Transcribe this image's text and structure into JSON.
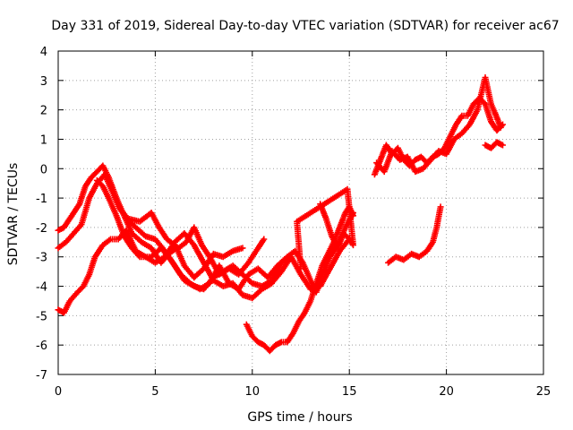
{
  "chart_data": {
    "type": "scatter",
    "title": "Day 331 of 2019, Sidereal Day-to-day VTEC variation (SDTVAR) for receiver ac67",
    "xlabel": "GPS time / hours",
    "ylabel": "SDTVAR / TECUs",
    "xlim": [
      0,
      25
    ],
    "ylim": [
      -7,
      4
    ],
    "xticks": [
      0,
      5,
      10,
      15,
      20,
      25
    ],
    "yticks": [
      -7,
      -6,
      -5,
      -4,
      -3,
      -2,
      -1,
      0,
      1,
      2,
      3,
      4
    ],
    "grid": true,
    "marker": "+",
    "color": "#ff0000",
    "series": [
      {
        "points": [
          [
            0.0,
            -2.1
          ],
          [
            0.3,
            -2.0
          ],
          [
            0.6,
            -1.7
          ],
          [
            0.8,
            -1.5
          ],
          [
            1.1,
            -1.2
          ],
          [
            1.4,
            -0.6
          ],
          [
            1.7,
            -0.3
          ],
          [
            2.0,
            -0.1
          ],
          [
            2.3,
            0.1
          ],
          [
            2.6,
            -0.3
          ],
          [
            3.0,
            -1.0
          ],
          [
            3.4,
            -1.6
          ],
          [
            3.8,
            -2.2
          ],
          [
            4.3,
            -2.5
          ],
          [
            4.8,
            -2.7
          ],
          [
            5.3,
            -3.2
          ],
          [
            5.7,
            -2.9
          ],
          [
            6.1,
            -2.7
          ],
          [
            6.5,
            -3.3
          ],
          [
            7.0,
            -3.7
          ],
          [
            7.5,
            -3.4
          ],
          [
            8.0,
            -2.9
          ],
          [
            8.5,
            -3.0
          ],
          [
            9.0,
            -2.8
          ],
          [
            9.5,
            -2.7
          ]
        ]
      },
      {
        "points": [
          [
            0.0,
            -2.7
          ],
          [
            0.4,
            -2.5
          ],
          [
            0.8,
            -2.2
          ],
          [
            1.2,
            -1.9
          ],
          [
            1.6,
            -1.0
          ],
          [
            2.0,
            -0.5
          ],
          [
            2.4,
            -0.2
          ],
          [
            2.8,
            -0.8
          ],
          [
            3.2,
            -1.4
          ],
          [
            3.6,
            -1.7
          ],
          [
            4.2,
            -1.8
          ],
          [
            4.8,
            -1.5
          ],
          [
            5.2,
            -2.0
          ],
          [
            5.6,
            -2.4
          ],
          [
            6.2,
            -2.7
          ],
          [
            6.6,
            -2.5
          ],
          [
            7.0,
            -2.0
          ],
          [
            7.4,
            -2.6
          ],
          [
            7.8,
            -3.0
          ],
          [
            8.3,
            -3.6
          ],
          [
            8.8,
            -3.4
          ],
          [
            9.3,
            -3.6
          ],
          [
            9.8,
            -3.2
          ],
          [
            10.3,
            -2.7
          ],
          [
            10.6,
            -2.4
          ]
        ]
      },
      {
        "points": [
          [
            0.0,
            -4.8
          ],
          [
            0.3,
            -4.9
          ],
          [
            0.6,
            -4.5
          ],
          [
            1.0,
            -4.2
          ],
          [
            1.3,
            -4.0
          ],
          [
            1.6,
            -3.6
          ],
          [
            1.9,
            -3.0
          ],
          [
            2.3,
            -2.6
          ],
          [
            2.7,
            -2.4
          ],
          [
            3.1,
            -2.4
          ],
          [
            3.5,
            -2.1
          ],
          [
            4.0,
            -2.8
          ],
          [
            4.5,
            -3.0
          ],
          [
            5.0,
            -3.2
          ],
          [
            5.5,
            -3.0
          ],
          [
            6.0,
            -2.5
          ],
          [
            6.5,
            -2.2
          ],
          [
            7.0,
            -2.6
          ],
          [
            7.5,
            -3.2
          ],
          [
            8.0,
            -3.8
          ],
          [
            8.5,
            -4.0
          ],
          [
            9.0,
            -3.9
          ],
          [
            9.5,
            -4.3
          ],
          [
            10.0,
            -4.4
          ],
          [
            10.5,
            -4.1
          ],
          [
            11.0,
            -3.9
          ],
          [
            11.5,
            -3.5
          ],
          [
            12.0,
            -3.0
          ]
        ]
      },
      {
        "points": [
          [
            2.0,
            -0.4
          ],
          [
            2.3,
            -0.6
          ],
          [
            2.6,
            -1.0
          ],
          [
            3.0,
            -1.6
          ],
          [
            3.4,
            -2.3
          ],
          [
            3.8,
            -2.7
          ],
          [
            4.2,
            -3.0
          ],
          [
            4.8,
            -3.0
          ],
          [
            5.3,
            -2.7
          ],
          [
            5.8,
            -3.1
          ],
          [
            6.3,
            -3.6
          ],
          [
            6.8,
            -3.9
          ],
          [
            7.3,
            -4.1
          ],
          [
            7.8,
            -3.9
          ],
          [
            8.3,
            -3.3
          ],
          [
            8.8,
            -3.9
          ],
          [
            9.3,
            -4.1
          ],
          [
            9.8,
            -3.6
          ],
          [
            10.3,
            -3.4
          ],
          [
            10.8,
            -3.7
          ],
          [
            11.3,
            -3.3
          ],
          [
            11.8,
            -3.0
          ],
          [
            12.2,
            -2.8
          ],
          [
            12.6,
            -3.2
          ],
          [
            13.0,
            -3.8
          ],
          [
            13.3,
            -4.2
          ],
          [
            13.6,
            -3.6
          ],
          [
            14.0,
            -3.0
          ],
          [
            14.4,
            -2.6
          ],
          [
            14.8,
            -2.0
          ],
          [
            15.2,
            -1.5
          ]
        ]
      },
      {
        "points": [
          [
            3.5,
            -1.7
          ],
          [
            4.0,
            -2.0
          ],
          [
            4.5,
            -2.3
          ],
          [
            5.0,
            -2.4
          ],
          [
            5.5,
            -2.8
          ],
          [
            6.0,
            -3.3
          ],
          [
            6.5,
            -3.8
          ],
          [
            7.0,
            -4.0
          ],
          [
            7.5,
            -4.1
          ],
          [
            8.0,
            -3.7
          ],
          [
            8.5,
            -3.5
          ],
          [
            9.0,
            -3.3
          ],
          [
            9.5,
            -3.6
          ],
          [
            10.0,
            -3.9
          ],
          [
            10.5,
            -4.0
          ],
          [
            11.0,
            -3.8
          ],
          [
            11.5,
            -3.2
          ],
          [
            12.0,
            -3.0
          ],
          [
            12.5,
            -3.6
          ],
          [
            13.0,
            -4.1
          ],
          [
            13.5,
            -4.0
          ],
          [
            14.0,
            -3.4
          ],
          [
            14.5,
            -2.8
          ],
          [
            15.0,
            -2.4
          ]
        ]
      },
      {
        "points": [
          [
            9.7,
            -5.3
          ],
          [
            10.0,
            -5.7
          ],
          [
            10.3,
            -5.9
          ],
          [
            10.6,
            -6.0
          ],
          [
            10.9,
            -6.2
          ],
          [
            11.2,
            -6.0
          ],
          [
            11.5,
            -5.9
          ],
          [
            11.8,
            -5.9
          ],
          [
            12.1,
            -5.6
          ],
          [
            12.4,
            -5.2
          ],
          [
            12.7,
            -4.9
          ],
          [
            13.0,
            -4.5
          ],
          [
            13.3,
            -3.9
          ],
          [
            13.6,
            -3.3
          ],
          [
            13.9,
            -2.9
          ],
          [
            14.2,
            -2.5
          ],
          [
            14.5,
            -2.0
          ],
          [
            14.8,
            -1.5
          ],
          [
            15.0,
            -1.3
          ],
          [
            15.2,
            -1.6
          ]
        ]
      },
      {
        "points": [
          [
            13.5,
            -1.2
          ],
          [
            13.8,
            -1.7
          ],
          [
            14.1,
            -2.3
          ],
          [
            14.4,
            -2.7
          ],
          [
            14.7,
            -2.2
          ],
          [
            15.0,
            -2.4
          ],
          [
            15.2,
            -2.6
          ],
          [
            14.9,
            -0.7
          ],
          [
            12.3,
            -1.8
          ],
          [
            12.5,
            -3.4
          ]
        ]
      },
      {
        "points": [
          [
            16.3,
            -0.2
          ],
          [
            16.6,
            0.3
          ],
          [
            16.9,
            0.8
          ],
          [
            17.2,
            0.5
          ],
          [
            17.5,
            0.7
          ],
          [
            17.8,
            0.3
          ],
          [
            18.1,
            0.1
          ],
          [
            18.4,
            0.3
          ],
          [
            18.7,
            0.4
          ],
          [
            19.0,
            0.2
          ],
          [
            19.3,
            0.4
          ],
          [
            19.6,
            0.5
          ],
          [
            19.9,
            0.7
          ],
          [
            20.2,
            1.1
          ],
          [
            20.5,
            1.5
          ],
          [
            20.8,
            1.8
          ],
          [
            21.1,
            1.8
          ],
          [
            21.4,
            2.2
          ],
          [
            21.7,
            2.4
          ],
          [
            22.0,
            2.2
          ],
          [
            22.3,
            1.6
          ],
          [
            22.6,
            1.3
          ],
          [
            22.9,
            1.5
          ]
        ]
      },
      {
        "points": [
          [
            16.4,
            0.2
          ],
          [
            16.8,
            -0.1
          ],
          [
            17.2,
            0.6
          ],
          [
            17.6,
            0.3
          ],
          [
            18.0,
            0.4
          ],
          [
            18.4,
            -0.1
          ],
          [
            18.8,
            0.0
          ],
          [
            19.2,
            0.3
          ],
          [
            19.6,
            0.6
          ],
          [
            20.0,
            0.5
          ],
          [
            20.4,
            1.0
          ],
          [
            20.8,
            1.2
          ],
          [
            21.2,
            1.5
          ],
          [
            21.6,
            2.0
          ],
          [
            22.0,
            3.1
          ],
          [
            22.3,
            2.2
          ],
          [
            22.5,
            1.9
          ],
          [
            22.8,
            1.4
          ]
        ]
      },
      {
        "points": [
          [
            22.0,
            0.8
          ],
          [
            22.3,
            0.7
          ],
          [
            22.6,
            0.9
          ],
          [
            22.9,
            0.8
          ]
        ]
      },
      {
        "points": [
          [
            17.0,
            -3.2
          ],
          [
            17.4,
            -3.0
          ],
          [
            17.8,
            -3.1
          ],
          [
            18.2,
            -2.9
          ],
          [
            18.6,
            -3.0
          ],
          [
            19.0,
            -2.8
          ],
          [
            19.3,
            -2.5
          ],
          [
            19.5,
            -2.0
          ],
          [
            19.7,
            -1.3
          ]
        ]
      }
    ]
  }
}
